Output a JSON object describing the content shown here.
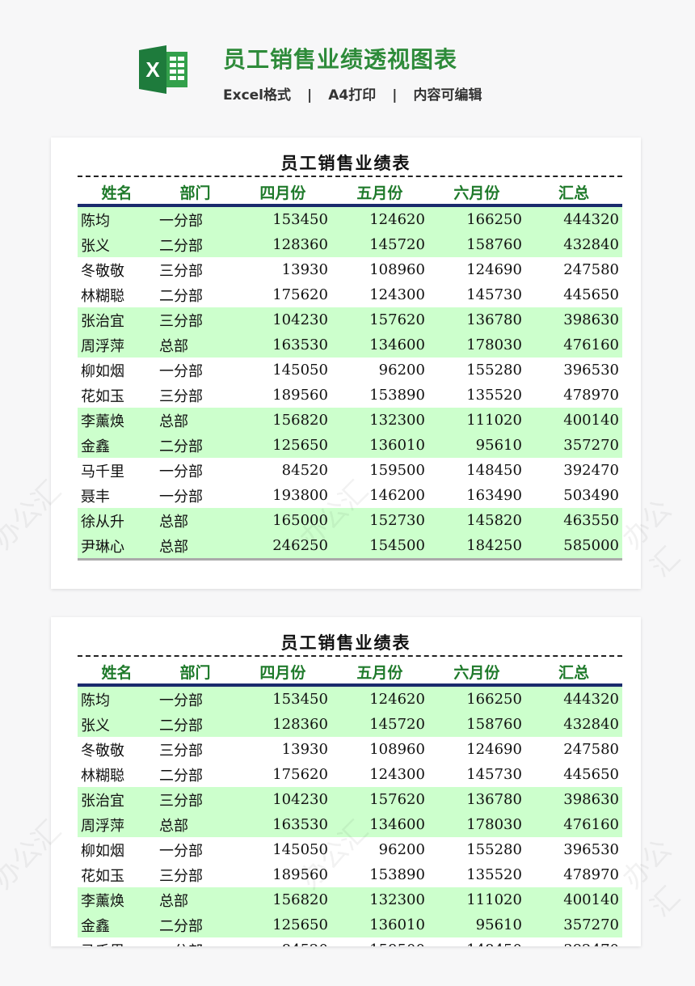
{
  "header": {
    "title": "员工销售业绩透视图表",
    "subtitle_items": [
      "Excel格式",
      "A4打印",
      "内容可编辑"
    ],
    "separator": "|"
  },
  "watermark": "办公汇",
  "sheet": {
    "title": "员工销售业绩表",
    "columns": [
      "姓名",
      "部门",
      "四月份",
      "五月份",
      "六月份",
      "汇总"
    ],
    "rows": [
      [
        "陈均",
        "一分部",
        "153450",
        "124620",
        "166250",
        "444320"
      ],
      [
        "张义",
        "二分部",
        "128360",
        "145720",
        "158760",
        "432840"
      ],
      [
        "冬敬敬",
        "三分部",
        "13930",
        "108960",
        "124690",
        "247580"
      ],
      [
        "林糊聪",
        "二分部",
        "175620",
        "124300",
        "145730",
        "445650"
      ],
      [
        "张治宜",
        "三分部",
        "104230",
        "157620",
        "136780",
        "398630"
      ],
      [
        "周浮萍",
        "总部",
        "163530",
        "134600",
        "178030",
        "476160"
      ],
      [
        "柳如烟",
        "一分部",
        "145050",
        "96200",
        "155280",
        "396530"
      ],
      [
        "花如玉",
        "三分部",
        "189560",
        "153890",
        "135520",
        "478970"
      ],
      [
        "李薰焕",
        "总部",
        "156820",
        "132300",
        "111020",
        "400140"
      ],
      [
        "金鑫",
        "二分部",
        "125650",
        "136010",
        "95610",
        "357270"
      ],
      [
        "马千里",
        "一分部",
        "84520",
        "159500",
        "148450",
        "392470"
      ],
      [
        "聂丰",
        "一分部",
        "193800",
        "146200",
        "163490",
        "503490"
      ],
      [
        "徐从升",
        "总部",
        "165000",
        "152730",
        "145820",
        "463550"
      ],
      [
        "尹琳心",
        "总部",
        "246250",
        "154500",
        "184250",
        "585000"
      ]
    ],
    "row_fill_color": "#ccffcc",
    "header_text_color": "#1f7a2b"
  },
  "colors": {
    "brand": "#2e8b3a",
    "excel_green": "#1e7b3c"
  }
}
